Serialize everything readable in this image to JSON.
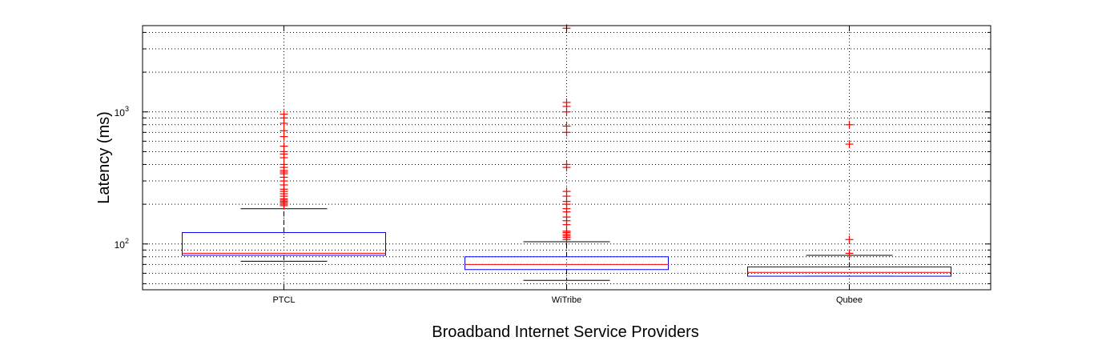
{
  "chart_data": {
    "type": "box",
    "title": "",
    "xlabel": "Broadband Internet Service Providers",
    "ylabel": "Latency (ms)",
    "yscale": "log",
    "ylim": [
      45,
      4500
    ],
    "grid": true,
    "y_ticks": [
      {
        "value": 100,
        "base": "10",
        "exp": "2"
      },
      {
        "value": 1000,
        "base": "10",
        "exp": "3"
      }
    ],
    "categories": [
      "PTCL",
      "WiTribe",
      "Qubee"
    ],
    "boxes": [
      {
        "name": "PTCL",
        "whisker_low": 74,
        "q1": 82,
        "median": 85,
        "q3": 122,
        "whisker_high": 185,
        "outliers": [
          195,
          200,
          205,
          210,
          215,
          220,
          230,
          240,
          250,
          260,
          280,
          300,
          320,
          340,
          350,
          360,
          380,
          400,
          450,
          480,
          500,
          550,
          650,
          720,
          820,
          900,
          960
        ]
      },
      {
        "name": "WiTribe",
        "whisker_low": 53,
        "q1": 64,
        "median": 70,
        "q3": 80,
        "whisker_high": 104,
        "outliers": [
          108,
          112,
          115,
          118,
          122,
          125,
          140,
          150,
          160,
          175,
          185,
          200,
          210,
          230,
          250,
          380,
          400,
          700,
          780,
          1000,
          1100,
          1180,
          4300
        ]
      },
      {
        "name": "Qubee",
        "whisker_low": 57,
        "q1": 57,
        "median": 61,
        "q3": 67,
        "whisker_high": 82,
        "outliers": [
          85,
          108,
          570,
          800
        ]
      }
    ],
    "colors": {
      "box": "#0000ff",
      "median": "#ff0000",
      "whisker": "#000000",
      "outlier": "#ff0000",
      "grid": "#000000"
    }
  }
}
